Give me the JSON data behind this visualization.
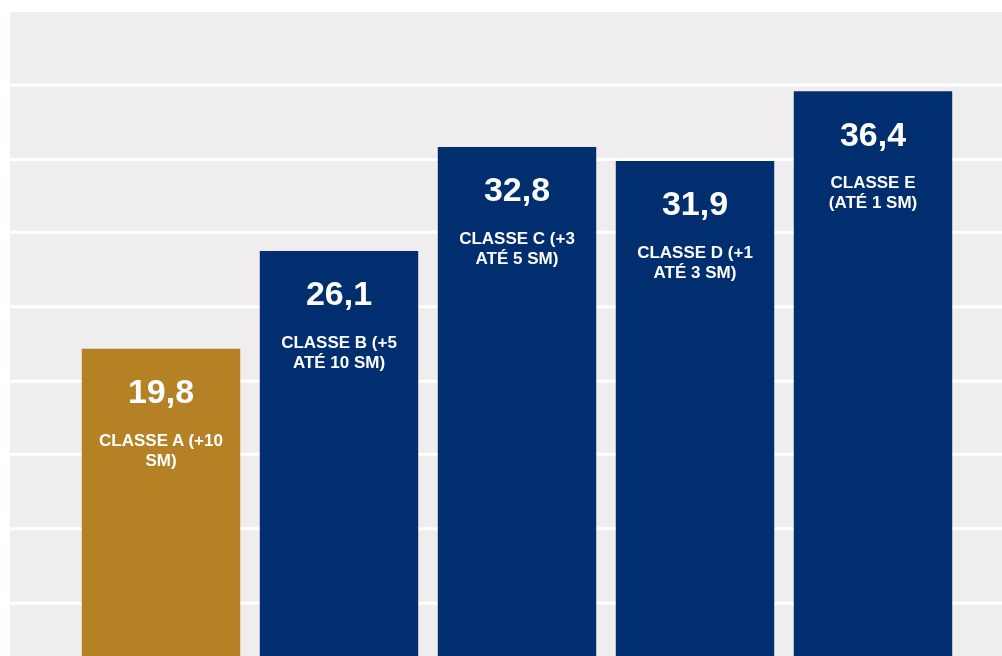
{
  "chart_data": {
    "type": "bar",
    "categories": [
      "CLASSE A (+10 SM)",
      "CLASSE B (+5 ATÉ 10 SM)",
      "CLASSE C (+3 ATÉ 5 SM)",
      "CLASSE D (+1 ATÉ 3 SM)",
      "CLASSE E (ATÉ 1 SM)"
    ],
    "values": [
      19.8,
      26.1,
      32.8,
      31.9,
      36.4
    ],
    "value_labels": [
      "19,8",
      "26,1",
      "32,8",
      "31,9",
      "36,4"
    ],
    "colors": [
      "#b48224",
      "#002e6e",
      "#002e6e",
      "#002e6e",
      "#002e6e"
    ],
    "ylim": [
      0,
      41.5
    ],
    "yticks": [
      {
        "value": 3.4,
        "label": null
      },
      {
        "value": 8.2,
        "label": null
      },
      {
        "value": 13,
        "label": null
      },
      {
        "value": 17.7,
        "label": null
      },
      {
        "value": 22.5,
        "label": null
      },
      {
        "value": 27.3,
        "label": null
      },
      {
        "value": 32,
        "label": null
      },
      {
        "value": 36.8,
        "label": null
      }
    ],
    "grid": "y",
    "legend": false,
    "tick_labels": false
  }
}
